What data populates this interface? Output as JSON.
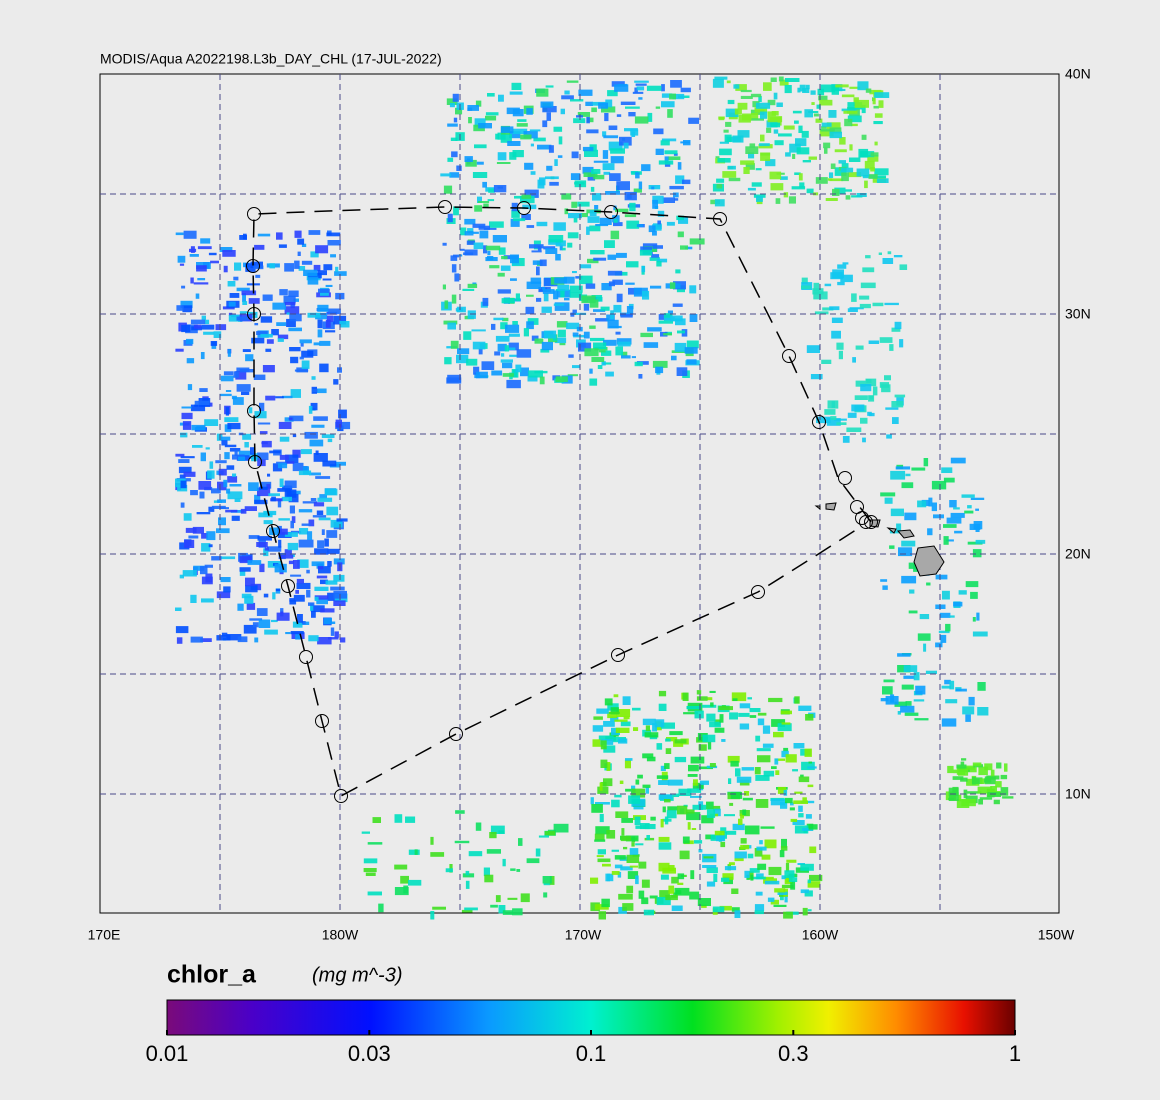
{
  "map": {
    "title": "MODIS/Aqua A2022198.L3b_DAY_CHL (17-JUL-2022)",
    "lon_labels": [
      "170E",
      "180W",
      "170W",
      "160W",
      "150W"
    ],
    "lat_labels": [
      "40N",
      "30N",
      "20N",
      "10N"
    ],
    "colorbar": {
      "label": "chlor_a",
      "units": "(mg m^-3)",
      "scale": "log",
      "lim": [
        0.01,
        1
      ],
      "ticks": [
        0.01,
        0.03,
        0.1,
        0.3,
        1
      ]
    }
  }
}
